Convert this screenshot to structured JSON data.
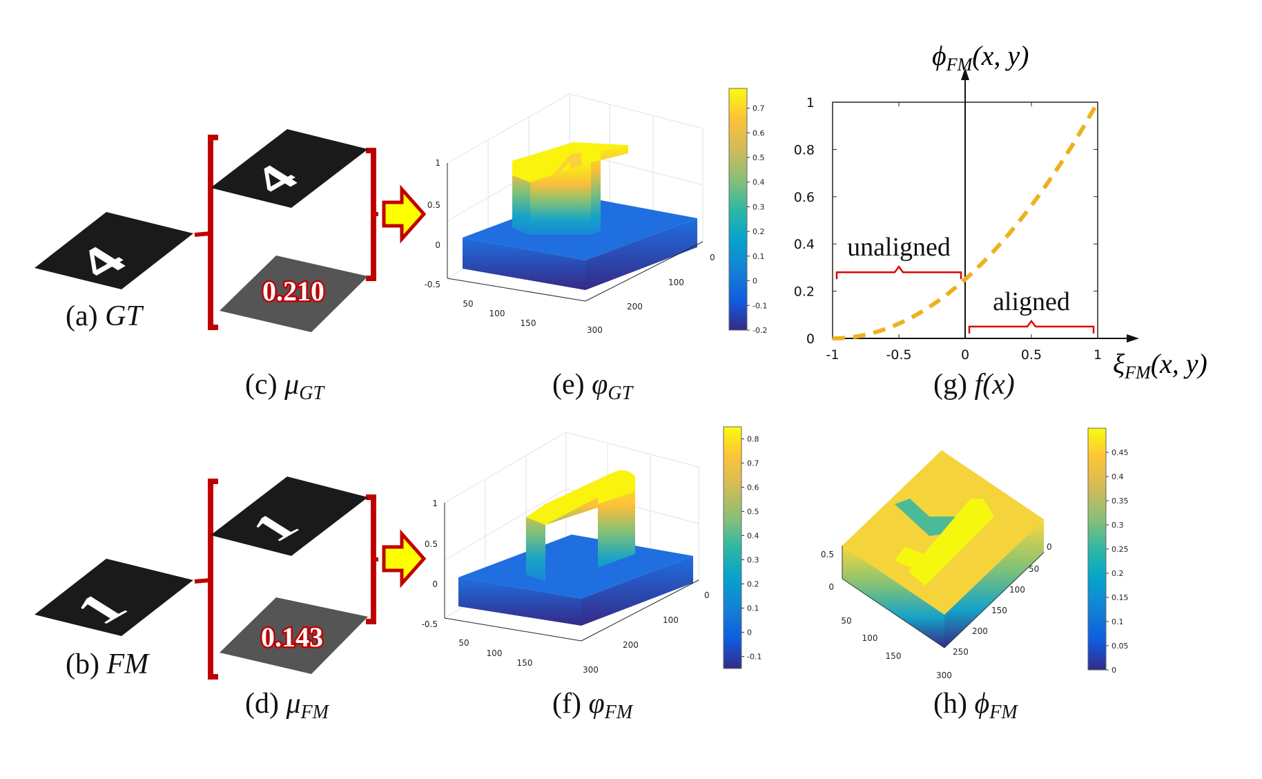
{
  "captions": {
    "a": {
      "prefix": "(a) ",
      "math": "GT"
    },
    "b": {
      "prefix": "(b) ",
      "math": "FM"
    },
    "c": {
      "prefix": "(c) ",
      "sym": "μ",
      "sub": "GT"
    },
    "d": {
      "prefix": "(d) ",
      "sym": "μ",
      "sub": "FM"
    },
    "e": {
      "prefix": "(e) ",
      "sym": "φ",
      "sub": "GT"
    },
    "f": {
      "prefix": "(f) ",
      "sym": "φ",
      "sub": "FM"
    },
    "g": {
      "prefix": "(g) ",
      "math": "f(x)"
    },
    "h": {
      "prefix": "(h) ",
      "sym": "ϕ",
      "sub": "FM"
    }
  },
  "glyphs": {
    "gt": "4",
    "fm": "1"
  },
  "mean_values": {
    "gt": "0.210",
    "fm": "0.143"
  },
  "surface_e": {
    "z_ticks": [
      "1",
      "0.5",
      "0",
      "-0.5"
    ],
    "x_ticks": [
      "50",
      "100",
      "150"
    ],
    "y_ticks": [
      "0",
      "100",
      "200",
      "300"
    ],
    "colorbar_ticks": [
      "0.7",
      "0.6",
      "0.5",
      "0.4",
      "0.3",
      "0.2",
      "0.1",
      "0",
      "-0.1",
      "-0.2"
    ],
    "colorbar_range": [
      -0.2,
      0.78
    ]
  },
  "surface_f": {
    "z_ticks": [
      "1",
      "0.5",
      "0",
      "-0.5"
    ],
    "x_ticks": [
      "50",
      "100",
      "150"
    ],
    "y_ticks": [
      "0",
      "100",
      "200",
      "300"
    ],
    "colorbar_ticks": [
      "0.8",
      "0.7",
      "0.6",
      "0.5",
      "0.4",
      "0.3",
      "0.2",
      "0.1",
      "0",
      "-0.1"
    ],
    "colorbar_range": [
      -0.15,
      0.85
    ]
  },
  "surface_h": {
    "z_ticks": [
      "0.5",
      "0"
    ],
    "x_ticks": [
      "50",
      "100",
      "150"
    ],
    "y_ticks": [
      "0",
      "50",
      "100",
      "150",
      "200",
      "250",
      "300"
    ],
    "colorbar_ticks": [
      "0.45",
      "0.4",
      "0.35",
      "0.3",
      "0.25",
      "0.2",
      "0.15",
      "0.1",
      "0.05",
      "0"
    ],
    "colorbar_range": [
      0,
      0.5
    ]
  },
  "chart_data": {
    "type": "line",
    "title": "",
    "y_axis_label": {
      "sym": "ϕ",
      "sub": "FM",
      "args": "(x, y)"
    },
    "x_axis_label": {
      "sym": "ξ",
      "sub": "FM",
      "args": "(x, y)"
    },
    "xlim": [
      -1,
      1
    ],
    "ylim": [
      0,
      1
    ],
    "x_ticks": [
      "-1",
      "-0.5",
      "0",
      "0.5",
      "1"
    ],
    "y_ticks": [
      "0",
      "0.2",
      "0.4",
      "0.6",
      "0.8",
      "1"
    ],
    "series": [
      {
        "style": "dashed",
        "color": "#edb120",
        "x": [
          -1,
          -0.75,
          -0.5,
          -0.25,
          0,
          0.25,
          0.5,
          0.75,
          1
        ],
        "y": [
          0,
          0.016,
          0.063,
          0.141,
          0.25,
          0.391,
          0.563,
          0.766,
          1
        ]
      }
    ],
    "annotations": [
      {
        "text": "unaligned",
        "from_x": -1,
        "to_x": 0,
        "at_y": 0.28
      },
      {
        "text": "aligned",
        "from_x": 0,
        "to_x": 1,
        "at_y": 0.05
      }
    ]
  },
  "colors": {
    "bracket": "#c00000",
    "arrow_fill": "#ffff00",
    "arrow_stroke": "#c00000",
    "value_text": "#ffffff",
    "value_stroke": "#c00000"
  }
}
